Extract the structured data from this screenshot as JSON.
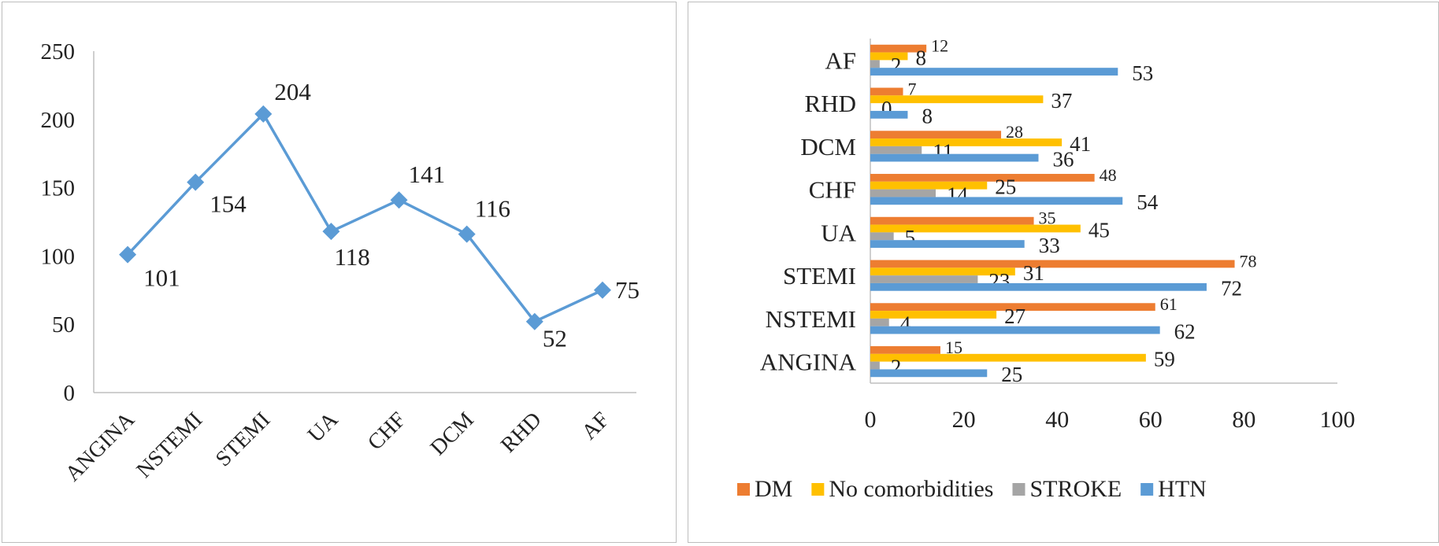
{
  "colors": {
    "line": "#5b9bd5",
    "axis": "#bfbfbf",
    "DM": "#ed7d31",
    "No comorbidities": "#ffc000",
    "STROKE": "#a5a5a5",
    "HTN": "#5b9bd5"
  },
  "chart_data": [
    {
      "type": "line",
      "categories": [
        "ANGINA",
        "NSTEMI",
        "STEMI",
        "UA",
        "CHF",
        "DCM",
        "RHD",
        "AF"
      ],
      "values": [
        101,
        154,
        204,
        118,
        141,
        116,
        52,
        75
      ],
      "ylim": [
        0,
        250
      ],
      "yticks": [
        0,
        50,
        100,
        150,
        200,
        250
      ],
      "marker": "diamond",
      "grid": false,
      "legend": "none"
    },
    {
      "type": "bar",
      "orientation": "horizontal",
      "categories": [
        "ANGINA",
        "NSTEMI",
        "STEMI",
        "UA",
        "CHF",
        "DCM",
        "RHD",
        "AF"
      ],
      "series": [
        {
          "name": "DM",
          "values": [
            15,
            61,
            78,
            35,
            48,
            28,
            7,
            12
          ]
        },
        {
          "name": "No comorbidities",
          "values": [
            59,
            27,
            31,
            45,
            25,
            41,
            37,
            8
          ]
        },
        {
          "name": "STROKE",
          "values": [
            2,
            4,
            23,
            5,
            14,
            11,
            0,
            2
          ]
        },
        {
          "name": "HTN",
          "values": [
            25,
            62,
            72,
            33,
            54,
            36,
            8,
            53
          ]
        }
      ],
      "xlim": [
        0,
        100
      ],
      "xticks": [
        0,
        20,
        40,
        60,
        80,
        100
      ],
      "grid": false,
      "legend": "bottom"
    }
  ]
}
